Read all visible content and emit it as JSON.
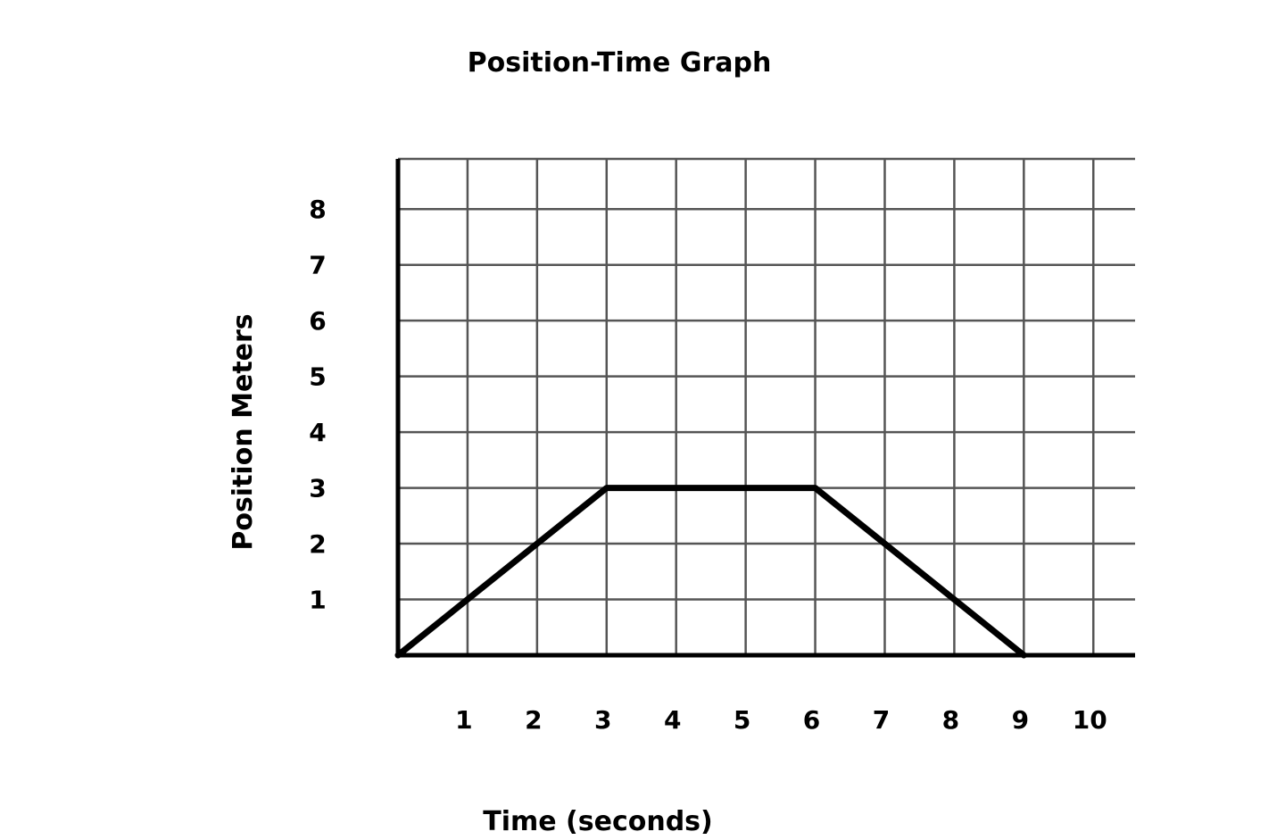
{
  "chart_data": {
    "type": "line",
    "title": "Position-Time Graph",
    "xlabel": "Time (seconds)",
    "ylabel": "Position Meters",
    "xlim": [
      0,
      10.6
    ],
    "ylim": [
      0,
      8.9
    ],
    "grid": true,
    "x_ticks": [
      1,
      2,
      3,
      4,
      5,
      6,
      7,
      8,
      9,
      10
    ],
    "x_tick_labels": [
      "1",
      "2",
      "3",
      "4",
      "5",
      "6",
      "7",
      "8",
      "9",
      "10"
    ],
    "y_ticks": [
      1,
      2,
      3,
      4,
      5,
      6,
      7,
      8
    ],
    "y_tick_labels": [
      "1",
      "2",
      "3",
      "4",
      "5",
      "6",
      "7",
      "8"
    ],
    "series": [
      {
        "x": [
          0,
          3,
          6,
          9
        ],
        "y": [
          0,
          3,
          3,
          0
        ],
        "color": "#000000"
      }
    ]
  }
}
